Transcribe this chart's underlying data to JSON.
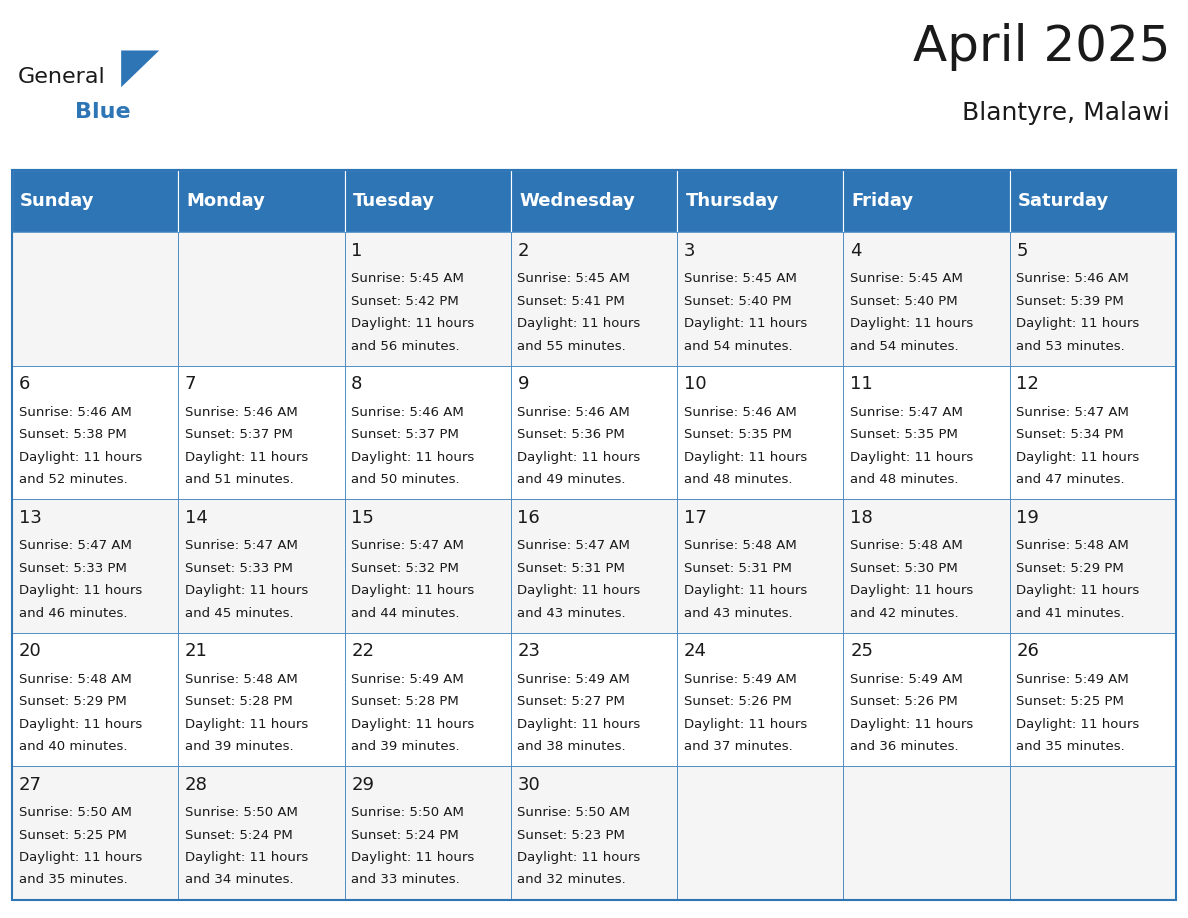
{
  "title": "April 2025",
  "subtitle": "Blantyre, Malawi",
  "header_bg": "#2E75B6",
  "header_text_color": "#FFFFFF",
  "border_color": "#2E75B6",
  "day_names": [
    "Sunday",
    "Monday",
    "Tuesday",
    "Wednesday",
    "Thursday",
    "Friday",
    "Saturday"
  ],
  "days": [
    {
      "date": 1,
      "col": 2,
      "row": 0,
      "sunrise": "5:45 AM",
      "sunset": "5:42 PM",
      "daylight_h": "11 hours",
      "daylight_m": "56 minutes"
    },
    {
      "date": 2,
      "col": 3,
      "row": 0,
      "sunrise": "5:45 AM",
      "sunset": "5:41 PM",
      "daylight_h": "11 hours",
      "daylight_m": "55 minutes"
    },
    {
      "date": 3,
      "col": 4,
      "row": 0,
      "sunrise": "5:45 AM",
      "sunset": "5:40 PM",
      "daylight_h": "11 hours",
      "daylight_m": "54 minutes"
    },
    {
      "date": 4,
      "col": 5,
      "row": 0,
      "sunrise": "5:45 AM",
      "sunset": "5:40 PM",
      "daylight_h": "11 hours",
      "daylight_m": "54 minutes"
    },
    {
      "date": 5,
      "col": 6,
      "row": 0,
      "sunrise": "5:46 AM",
      "sunset": "5:39 PM",
      "daylight_h": "11 hours",
      "daylight_m": "53 minutes"
    },
    {
      "date": 6,
      "col": 0,
      "row": 1,
      "sunrise": "5:46 AM",
      "sunset": "5:38 PM",
      "daylight_h": "11 hours",
      "daylight_m": "52 minutes"
    },
    {
      "date": 7,
      "col": 1,
      "row": 1,
      "sunrise": "5:46 AM",
      "sunset": "5:37 PM",
      "daylight_h": "11 hours",
      "daylight_m": "51 minutes"
    },
    {
      "date": 8,
      "col": 2,
      "row": 1,
      "sunrise": "5:46 AM",
      "sunset": "5:37 PM",
      "daylight_h": "11 hours",
      "daylight_m": "50 minutes"
    },
    {
      "date": 9,
      "col": 3,
      "row": 1,
      "sunrise": "5:46 AM",
      "sunset": "5:36 PM",
      "daylight_h": "11 hours",
      "daylight_m": "49 minutes"
    },
    {
      "date": 10,
      "col": 4,
      "row": 1,
      "sunrise": "5:46 AM",
      "sunset": "5:35 PM",
      "daylight_h": "11 hours",
      "daylight_m": "48 minutes"
    },
    {
      "date": 11,
      "col": 5,
      "row": 1,
      "sunrise": "5:47 AM",
      "sunset": "5:35 PM",
      "daylight_h": "11 hours",
      "daylight_m": "48 minutes"
    },
    {
      "date": 12,
      "col": 6,
      "row": 1,
      "sunrise": "5:47 AM",
      "sunset": "5:34 PM",
      "daylight_h": "11 hours",
      "daylight_m": "47 minutes"
    },
    {
      "date": 13,
      "col": 0,
      "row": 2,
      "sunrise": "5:47 AM",
      "sunset": "5:33 PM",
      "daylight_h": "11 hours",
      "daylight_m": "46 minutes"
    },
    {
      "date": 14,
      "col": 1,
      "row": 2,
      "sunrise": "5:47 AM",
      "sunset": "5:33 PM",
      "daylight_h": "11 hours",
      "daylight_m": "45 minutes"
    },
    {
      "date": 15,
      "col": 2,
      "row": 2,
      "sunrise": "5:47 AM",
      "sunset": "5:32 PM",
      "daylight_h": "11 hours",
      "daylight_m": "44 minutes"
    },
    {
      "date": 16,
      "col": 3,
      "row": 2,
      "sunrise": "5:47 AM",
      "sunset": "5:31 PM",
      "daylight_h": "11 hours",
      "daylight_m": "43 minutes"
    },
    {
      "date": 17,
      "col": 4,
      "row": 2,
      "sunrise": "5:48 AM",
      "sunset": "5:31 PM",
      "daylight_h": "11 hours",
      "daylight_m": "43 minutes"
    },
    {
      "date": 18,
      "col": 5,
      "row": 2,
      "sunrise": "5:48 AM",
      "sunset": "5:30 PM",
      "daylight_h": "11 hours",
      "daylight_m": "42 minutes"
    },
    {
      "date": 19,
      "col": 6,
      "row": 2,
      "sunrise": "5:48 AM",
      "sunset": "5:29 PM",
      "daylight_h": "11 hours",
      "daylight_m": "41 minutes"
    },
    {
      "date": 20,
      "col": 0,
      "row": 3,
      "sunrise": "5:48 AM",
      "sunset": "5:29 PM",
      "daylight_h": "11 hours",
      "daylight_m": "40 minutes"
    },
    {
      "date": 21,
      "col": 1,
      "row": 3,
      "sunrise": "5:48 AM",
      "sunset": "5:28 PM",
      "daylight_h": "11 hours",
      "daylight_m": "39 minutes"
    },
    {
      "date": 22,
      "col": 2,
      "row": 3,
      "sunrise": "5:49 AM",
      "sunset": "5:28 PM",
      "daylight_h": "11 hours",
      "daylight_m": "39 minutes"
    },
    {
      "date": 23,
      "col": 3,
      "row": 3,
      "sunrise": "5:49 AM",
      "sunset": "5:27 PM",
      "daylight_h": "11 hours",
      "daylight_m": "38 minutes"
    },
    {
      "date": 24,
      "col": 4,
      "row": 3,
      "sunrise": "5:49 AM",
      "sunset": "5:26 PM",
      "daylight_h": "11 hours",
      "daylight_m": "37 minutes"
    },
    {
      "date": 25,
      "col": 5,
      "row": 3,
      "sunrise": "5:49 AM",
      "sunset": "5:26 PM",
      "daylight_h": "11 hours",
      "daylight_m": "36 minutes"
    },
    {
      "date": 26,
      "col": 6,
      "row": 3,
      "sunrise": "5:49 AM",
      "sunset": "5:25 PM",
      "daylight_h": "11 hours",
      "daylight_m": "35 minutes"
    },
    {
      "date": 27,
      "col": 0,
      "row": 4,
      "sunrise": "5:50 AM",
      "sunset": "5:25 PM",
      "daylight_h": "11 hours",
      "daylight_m": "35 minutes"
    },
    {
      "date": 28,
      "col": 1,
      "row": 4,
      "sunrise": "5:50 AM",
      "sunset": "5:24 PM",
      "daylight_h": "11 hours",
      "daylight_m": "34 minutes"
    },
    {
      "date": 29,
      "col": 2,
      "row": 4,
      "sunrise": "5:50 AM",
      "sunset": "5:24 PM",
      "daylight_h": "11 hours",
      "daylight_m": "33 minutes"
    },
    {
      "date": 30,
      "col": 3,
      "row": 4,
      "sunrise": "5:50 AM",
      "sunset": "5:23 PM",
      "daylight_h": "11 hours",
      "daylight_m": "32 minutes"
    }
  ],
  "logo_general_color": "#1a1a1a",
  "logo_blue_color": "#2E75B6",
  "title_fontsize": 36,
  "subtitle_fontsize": 18,
  "header_fontsize": 13,
  "date_fontsize": 13,
  "cell_fontsize": 9.5
}
